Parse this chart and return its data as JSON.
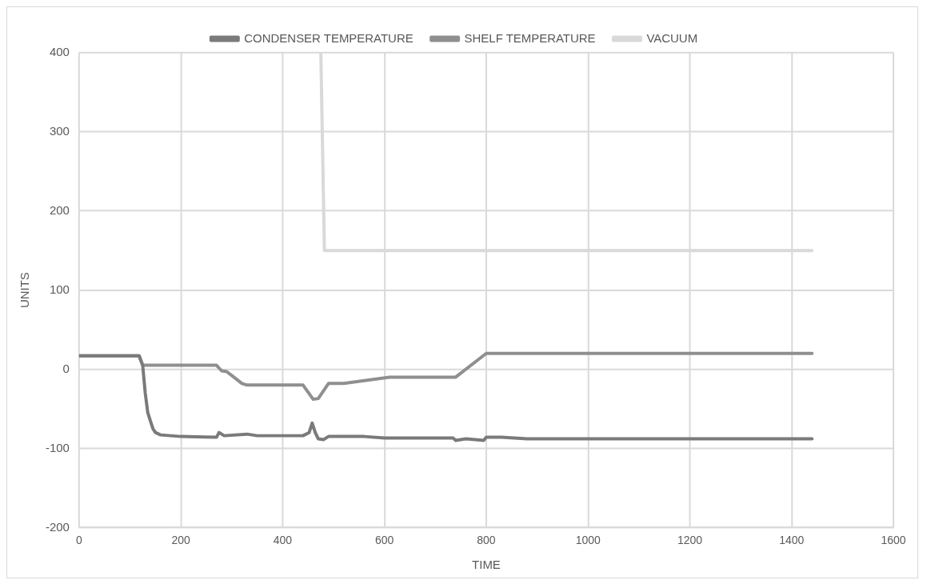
{
  "chart_data": {
    "type": "line",
    "xlabel": "TIME",
    "ylabel": "UNITS",
    "xlim": [
      0,
      1600
    ],
    "xticks": [
      0,
      200,
      400,
      600,
      800,
      1000,
      1200,
      1400,
      1600
    ],
    "ylim": [
      -200,
      400
    ],
    "yticks": [
      -200,
      -100,
      0,
      100,
      200,
      300,
      400
    ],
    "grid": true,
    "legend": "top",
    "marker": "none",
    "line_style": "solid",
    "series": [
      {
        "name": "CONDENSER TEMPERATURE",
        "color": "#7a7a7a",
        "x": [
          0,
          118,
          125,
          130,
          135,
          140,
          145,
          150,
          160,
          200,
          270,
          275,
          285,
          330,
          350,
          440,
          452,
          458,
          464,
          470,
          480,
          490,
          560,
          600,
          735,
          740,
          760,
          795,
          800,
          830,
          880,
          1000,
          1200,
          1440
        ],
        "values": [
          17,
          17,
          5,
          -30,
          -55,
          -65,
          -75,
          -80,
          -83,
          -85,
          -86,
          -80,
          -84,
          -82,
          -84,
          -84,
          -80,
          -68,
          -80,
          -88,
          -89,
          -85,
          -85,
          -87,
          -87,
          -90,
          -88,
          -90,
          -86,
          -86,
          -88,
          -88,
          -88,
          -88
        ]
      },
      {
        "name": "SHELF TEMPERATURE",
        "color": "#8f8f8f",
        "x": [
          0,
          118,
          125,
          270,
          280,
          290,
          300,
          320,
          330,
          440,
          460,
          470,
          490,
          520,
          610,
          740,
          800,
          1000,
          1200,
          1440
        ],
        "values": [
          17,
          17,
          5,
          5,
          -2,
          -3,
          -8,
          -18,
          -20,
          -20,
          -38,
          -37,
          -18,
          -18,
          -10,
          -10,
          20,
          20,
          20,
          20
        ]
      },
      {
        "name": "VACUUM",
        "color": "#d9d9d9",
        "x": [
          475,
          482,
          600,
          800,
          1000,
          1200,
          1440
        ],
        "values": [
          400,
          150,
          150,
          150,
          150,
          150,
          150
        ]
      }
    ]
  }
}
